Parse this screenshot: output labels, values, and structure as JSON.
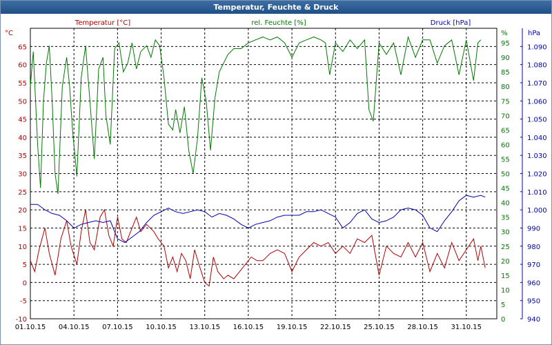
{
  "window": {
    "title": "Temperatur, Feuchte & Druck"
  },
  "chart_data": {
    "type": "line",
    "title": "Temperatur, Feuchte & Druck",
    "colors": {
      "temperature": "#b00000",
      "humidity": "#007a00",
      "pressure": "#0000b0",
      "grid": "#000000"
    },
    "grid": true,
    "x": {
      "start": "01.10.15",
      "end": "02.11.15",
      "tick_labels": [
        "01.10.15",
        "04.10.15",
        "07.10.15",
        "10.10.15",
        "13.10.15",
        "16.10.15",
        "19.10.15",
        "22.10.15",
        "25.10.15",
        "28.10.15",
        "31.10.15"
      ],
      "tick_days": [
        0,
        3,
        6,
        9,
        12,
        15,
        18,
        21,
        24,
        27,
        30
      ]
    },
    "axes": {
      "temperature": {
        "label": "Temperatur [°C]",
        "unit": "°C",
        "range": [
          -10,
          70
        ],
        "ticks": [
          "-10",
          "-5",
          "0",
          "5",
          "10",
          "15",
          "20",
          "25",
          "30",
          "35",
          "40",
          "45",
          "50",
          "55",
          "60",
          "65"
        ]
      },
      "humidity": {
        "label": "rel. Feuchte [%]",
        "unit": "%",
        "range": [
          0,
          100
        ],
        "ticks": [
          "0",
          "5",
          "10",
          "15",
          "20",
          "25",
          "30",
          "35",
          "40",
          "45",
          "50",
          "55",
          "60",
          "65",
          "70",
          "75",
          "80",
          "85",
          "90",
          "95"
        ]
      },
      "pressure": {
        "label": "Druck [hPa]",
        "unit": "hPa",
        "range": [
          940,
          1100
        ],
        "ticks": [
          "940",
          "950",
          "960",
          "970",
          "980",
          "990",
          "1.000",
          "1.010",
          "1.020",
          "1.030",
          "1.040",
          "1.050",
          "1.060",
          "1.070",
          "1.080",
          "1.090"
        ]
      }
    },
    "series": [
      {
        "name": "Temperatur [°C]",
        "axis": "temperature",
        "color": "#b00000",
        "points": [
          [
            0,
            6
          ],
          [
            0.3,
            3
          ],
          [
            0.6,
            9
          ],
          [
            1,
            15
          ],
          [
            1.3,
            8
          ],
          [
            1.7,
            2
          ],
          [
            2.1,
            12
          ],
          [
            2.5,
            17
          ],
          [
            2.8,
            10
          ],
          [
            3.2,
            5
          ],
          [
            3.5,
            14
          ],
          [
            3.8,
            20
          ],
          [
            4.1,
            11
          ],
          [
            4.4,
            9
          ],
          [
            4.8,
            18
          ],
          [
            5.1,
            20
          ],
          [
            5.4,
            13
          ],
          [
            5.7,
            10
          ],
          [
            6,
            18
          ],
          [
            6.3,
            12
          ],
          [
            6.6,
            11
          ],
          [
            7,
            15
          ],
          [
            7.3,
            18
          ],
          [
            7.6,
            14
          ],
          [
            8,
            16
          ],
          [
            8.5,
            14
          ],
          [
            8.8,
            12
          ],
          [
            9.2,
            10
          ],
          [
            9.5,
            4
          ],
          [
            9.8,
            7
          ],
          [
            10.1,
            3
          ],
          [
            10.4,
            8
          ],
          [
            10.7,
            6
          ],
          [
            11,
            1
          ],
          [
            11.3,
            9
          ],
          [
            11.6,
            5
          ],
          [
            12,
            0
          ],
          [
            12.3,
            -1
          ],
          [
            12.6,
            7
          ],
          [
            12.9,
            3
          ],
          [
            13.3,
            1
          ],
          [
            13.6,
            2
          ],
          [
            14,
            1
          ],
          [
            14.4,
            3
          ],
          [
            14.8,
            5
          ],
          [
            15.2,
            7
          ],
          [
            15.6,
            6
          ],
          [
            16,
            6
          ],
          [
            16.5,
            8
          ],
          [
            17,
            9
          ],
          [
            17.5,
            8
          ],
          [
            18,
            3
          ],
          [
            18.5,
            7
          ],
          [
            19,
            9
          ],
          [
            19.5,
            11
          ],
          [
            20,
            10
          ],
          [
            20.5,
            11
          ],
          [
            21,
            8
          ],
          [
            21.5,
            10
          ],
          [
            22,
            8
          ],
          [
            22.5,
            12
          ],
          [
            23,
            11
          ],
          [
            23.5,
            13
          ],
          [
            24,
            2
          ],
          [
            24.5,
            10
          ],
          [
            25,
            8
          ],
          [
            25.5,
            7
          ],
          [
            26,
            11
          ],
          [
            26.5,
            7
          ],
          [
            27,
            11
          ],
          [
            27.5,
            3
          ],
          [
            28,
            8
          ],
          [
            28.5,
            4
          ],
          [
            29,
            11
          ],
          [
            29.5,
            6
          ],
          [
            30,
            9
          ],
          [
            30.5,
            12
          ],
          [
            30.8,
            6
          ],
          [
            31,
            10
          ],
          [
            31.3,
            4
          ]
        ]
      },
      {
        "name": "rel. Feuchte [%]",
        "axis": "humidity",
        "color": "#007a00",
        "points": [
          [
            0,
            80
          ],
          [
            0.2,
            92
          ],
          [
            0.5,
            60
          ],
          [
            0.7,
            45
          ],
          [
            0.9,
            75
          ],
          [
            1.1,
            88
          ],
          [
            1.3,
            94
          ],
          [
            1.5,
            75
          ],
          [
            1.7,
            50
          ],
          [
            1.9,
            43
          ],
          [
            2.2,
            80
          ],
          [
            2.5,
            90
          ],
          [
            2.7,
            80
          ],
          [
            2.9,
            65
          ],
          [
            3.2,
            49
          ],
          [
            3.5,
            83
          ],
          [
            3.8,
            94
          ],
          [
            4.1,
            75
          ],
          [
            4.4,
            55
          ],
          [
            4.7,
            86
          ],
          [
            5,
            90
          ],
          [
            5.2,
            70
          ],
          [
            5.5,
            60
          ],
          [
            5.8,
            93
          ],
          [
            6.1,
            95
          ],
          [
            6.4,
            85
          ],
          [
            6.7,
            88
          ],
          [
            7,
            95
          ],
          [
            7.3,
            86
          ],
          [
            7.6,
            92
          ],
          [
            8,
            94
          ],
          [
            8.3,
            90
          ],
          [
            8.6,
            96
          ],
          [
            8.9,
            94
          ],
          [
            9.2,
            83
          ],
          [
            9.5,
            67
          ],
          [
            9.8,
            65
          ],
          [
            10,
            72
          ],
          [
            10.3,
            64
          ],
          [
            10.6,
            73
          ],
          [
            10.9,
            58
          ],
          [
            11.2,
            50
          ],
          [
            11.5,
            62
          ],
          [
            11.8,
            83
          ],
          [
            12.1,
            75
          ],
          [
            12.4,
            58
          ],
          [
            12.7,
            76
          ],
          [
            13,
            85
          ],
          [
            13.3,
            88
          ],
          [
            13.6,
            91
          ],
          [
            14,
            93
          ],
          [
            14.5,
            93
          ],
          [
            15,
            95
          ],
          [
            15.5,
            96
          ],
          [
            16,
            97
          ],
          [
            16.5,
            96
          ],
          [
            17,
            97
          ],
          [
            17.5,
            95
          ],
          [
            18,
            90
          ],
          [
            18.5,
            95
          ],
          [
            19,
            96
          ],
          [
            19.5,
            97
          ],
          [
            20,
            96
          ],
          [
            20.3,
            95
          ],
          [
            20.6,
            84
          ],
          [
            21,
            95
          ],
          [
            21.5,
            92
          ],
          [
            22,
            96
          ],
          [
            22.5,
            93
          ],
          [
            23,
            96
          ],
          [
            23.3,
            72
          ],
          [
            23.6,
            68
          ],
          [
            24,
            95
          ],
          [
            24.5,
            91
          ],
          [
            25,
            95
          ],
          [
            25.5,
            84
          ],
          [
            26,
            97
          ],
          [
            26.5,
            90
          ],
          [
            27,
            96
          ],
          [
            27.5,
            96
          ],
          [
            28,
            88
          ],
          [
            28.5,
            94
          ],
          [
            29,
            96
          ],
          [
            29.5,
            84
          ],
          [
            30,
            96
          ],
          [
            30.5,
            82
          ],
          [
            30.8,
            95
          ],
          [
            31,
            96
          ]
        ]
      },
      {
        "name": "Druck [hPa]",
        "axis": "pressure",
        "color": "#0000b0",
        "points": [
          [
            0,
            1003
          ],
          [
            0.5,
            1003
          ],
          [
            1,
            1000
          ],
          [
            1.5,
            998
          ],
          [
            2,
            997
          ],
          [
            2.5,
            994
          ],
          [
            3,
            990
          ],
          [
            3.5,
            992
          ],
          [
            4,
            993
          ],
          [
            4.5,
            994
          ],
          [
            5,
            993
          ],
          [
            5.5,
            994
          ],
          [
            6,
            984
          ],
          [
            6.5,
            982
          ],
          [
            7,
            985
          ],
          [
            7.5,
            988
          ],
          [
            8,
            993
          ],
          [
            8.5,
            997
          ],
          [
            9,
            999
          ],
          [
            9.5,
            1001
          ],
          [
            10,
            999
          ],
          [
            10.5,
            998
          ],
          [
            11,
            999
          ],
          [
            11.5,
            1000
          ],
          [
            12,
            999
          ],
          [
            12.5,
            996
          ],
          [
            13,
            998
          ],
          [
            13.5,
            997
          ],
          [
            14,
            995
          ],
          [
            14.5,
            992
          ],
          [
            15,
            990
          ],
          [
            15.5,
            992
          ],
          [
            16,
            993
          ],
          [
            16.5,
            994
          ],
          [
            17,
            996
          ],
          [
            17.5,
            997
          ],
          [
            18,
            997
          ],
          [
            18.5,
            997
          ],
          [
            19,
            999
          ],
          [
            19.5,
            999
          ],
          [
            20,
            1000
          ],
          [
            20.5,
            998
          ],
          [
            21,
            996
          ],
          [
            21.5,
            990
          ],
          [
            22,
            993
          ],
          [
            22.5,
            998
          ],
          [
            23,
            1000
          ],
          [
            23.5,
            995
          ],
          [
            24,
            993
          ],
          [
            24.5,
            994
          ],
          [
            25,
            996
          ],
          [
            25.5,
            1000
          ],
          [
            26,
            1001
          ],
          [
            26.5,
            1000
          ],
          [
            27,
            997
          ],
          [
            27.5,
            990
          ],
          [
            28,
            988
          ],
          [
            28.5,
            994
          ],
          [
            29,
            999
          ],
          [
            29.5,
            1005
          ],
          [
            30,
            1008
          ],
          [
            30.5,
            1007
          ],
          [
            31,
            1008
          ],
          [
            31.3,
            1007
          ]
        ]
      }
    ]
  }
}
